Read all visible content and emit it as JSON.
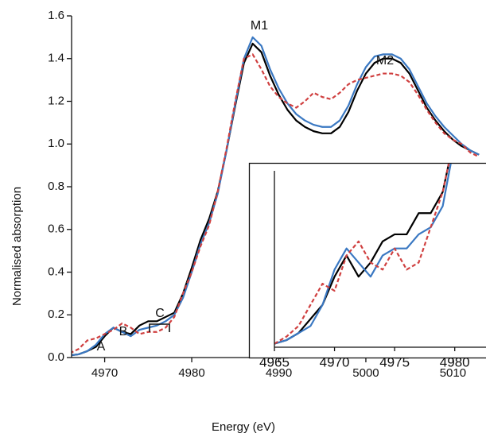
{
  "chart_data": [
    {
      "type": "line",
      "x_label": "Energy (eV)",
      "y_label": "Normalised absorption",
      "annotations": [
        "A",
        "B",
        "C",
        "M1",
        "M2"
      ],
      "xlim": [
        4966.2,
        5013.8
      ],
      "ylim": [
        0,
        1.6
      ],
      "xticks": [
        4970,
        4980,
        4990,
        5000,
        5010
      ],
      "yticks": [
        {
          "value": 0,
          "label": "0.0"
        },
        {
          "value": 0.2,
          "label": "0.2"
        },
        {
          "value": 0.4,
          "label": "0.4"
        },
        {
          "value": 0.6,
          "label": "0.6"
        },
        {
          "value": 0.8,
          "label": "0.8"
        },
        {
          "value": 1,
          "label": "1.0"
        },
        {
          "value": 1.2,
          "label": "1.2"
        },
        {
          "value": 1.4,
          "label": "1.4"
        },
        {
          "value": 1.6,
          "label": "1.6"
        }
      ],
      "x": [
        4966,
        4967,
        4968,
        4969,
        4970,
        4971,
        4972,
        4973,
        4974,
        4975,
        4976,
        4977,
        4978,
        4979,
        4980,
        4981,
        4982,
        4983,
        4984,
        4985,
        4986,
        4987,
        4988,
        4989,
        4990,
        4991,
        4992,
        4993,
        4994,
        4995,
        4996,
        4997,
        4998,
        4999,
        5000,
        5001,
        5002,
        5003,
        5004,
        5005,
        5006,
        5007,
        5008,
        5009,
        5010,
        5011,
        5012,
        5013
      ],
      "series": [
        {
          "color": "#000000",
          "linestyle": "solid",
          "values": [
            0.01,
            0.015,
            0.03,
            0.05,
            0.1,
            0.14,
            0.12,
            0.11,
            0.15,
            0.17,
            0.17,
            0.19,
            0.21,
            0.3,
            0.42,
            0.55,
            0.65,
            0.78,
            0.97,
            1.18,
            1.38,
            1.47,
            1.43,
            1.32,
            1.23,
            1.16,
            1.11,
            1.08,
            1.06,
            1.05,
            1.05,
            1.08,
            1.15,
            1.25,
            1.33,
            1.38,
            1.4,
            1.4,
            1.38,
            1.33,
            1.25,
            1.17,
            1.11,
            1.06,
            1.02,
            0.99,
            0.97,
            0.95
          ]
        },
        {
          "color": "#3a78c2",
          "linestyle": "solid",
          "values": [
            0.01,
            0.015,
            0.03,
            0.06,
            0.11,
            0.14,
            0.12,
            0.1,
            0.13,
            0.14,
            0.15,
            0.17,
            0.2,
            0.28,
            0.4,
            0.53,
            0.63,
            0.77,
            0.97,
            1.19,
            1.4,
            1.5,
            1.46,
            1.35,
            1.26,
            1.19,
            1.14,
            1.11,
            1.09,
            1.08,
            1.08,
            1.11,
            1.18,
            1.28,
            1.36,
            1.41,
            1.42,
            1.42,
            1.4,
            1.35,
            1.27,
            1.19,
            1.13,
            1.08,
            1.04,
            1.0,
            0.97,
            0.95
          ]
        },
        {
          "color": "#d04040",
          "linestyle": "dashed",
          "values": [
            0.02,
            0.04,
            0.08,
            0.09,
            0.11,
            0.13,
            0.16,
            0.14,
            0.11,
            0.12,
            0.12,
            0.14,
            0.19,
            0.3,
            0.4,
            0.52,
            0.62,
            0.78,
            0.98,
            1.2,
            1.4,
            1.42,
            1.35,
            1.27,
            1.22,
            1.19,
            1.17,
            1.2,
            1.24,
            1.22,
            1.21,
            1.24,
            1.28,
            1.3,
            1.31,
            1.32,
            1.33,
            1.33,
            1.32,
            1.29,
            1.23,
            1.16,
            1.1,
            1.05,
            1.02,
            1.0,
            0.96,
            0.94
          ]
        }
      ]
    },
    {
      "type": "line",
      "xlim": [
        4965,
        4982.6
      ],
      "ylim": [
        0,
        0.25
      ],
      "xticks": [
        4965,
        4970,
        4975,
        4980
      ],
      "x": [
        4965,
        4966,
        4967,
        4968,
        4969,
        4970,
        4971,
        4972,
        4973,
        4974,
        4975,
        4976,
        4977,
        4978,
        4979,
        4980
      ],
      "series": [
        {
          "color": "#000000",
          "linestyle": "solid",
          "values": [
            0.005,
            0.01,
            0.02,
            0.04,
            0.06,
            0.1,
            0.13,
            0.1,
            0.12,
            0.15,
            0.16,
            0.16,
            0.19,
            0.19,
            0.22,
            0.3
          ]
        },
        {
          "color": "#3a78c2",
          "linestyle": "solid",
          "values": [
            0.005,
            0.01,
            0.02,
            0.03,
            0.06,
            0.11,
            0.14,
            0.12,
            0.1,
            0.13,
            0.14,
            0.14,
            0.16,
            0.17,
            0.2,
            0.29
          ]
        },
        {
          "color": "#d04040",
          "linestyle": "dashed",
          "values": [
            0.005,
            0.015,
            0.03,
            0.06,
            0.09,
            0.08,
            0.13,
            0.15,
            0.12,
            0.11,
            0.14,
            0.11,
            0.12,
            0.17,
            0.22,
            0.3
          ]
        }
      ]
    }
  ]
}
